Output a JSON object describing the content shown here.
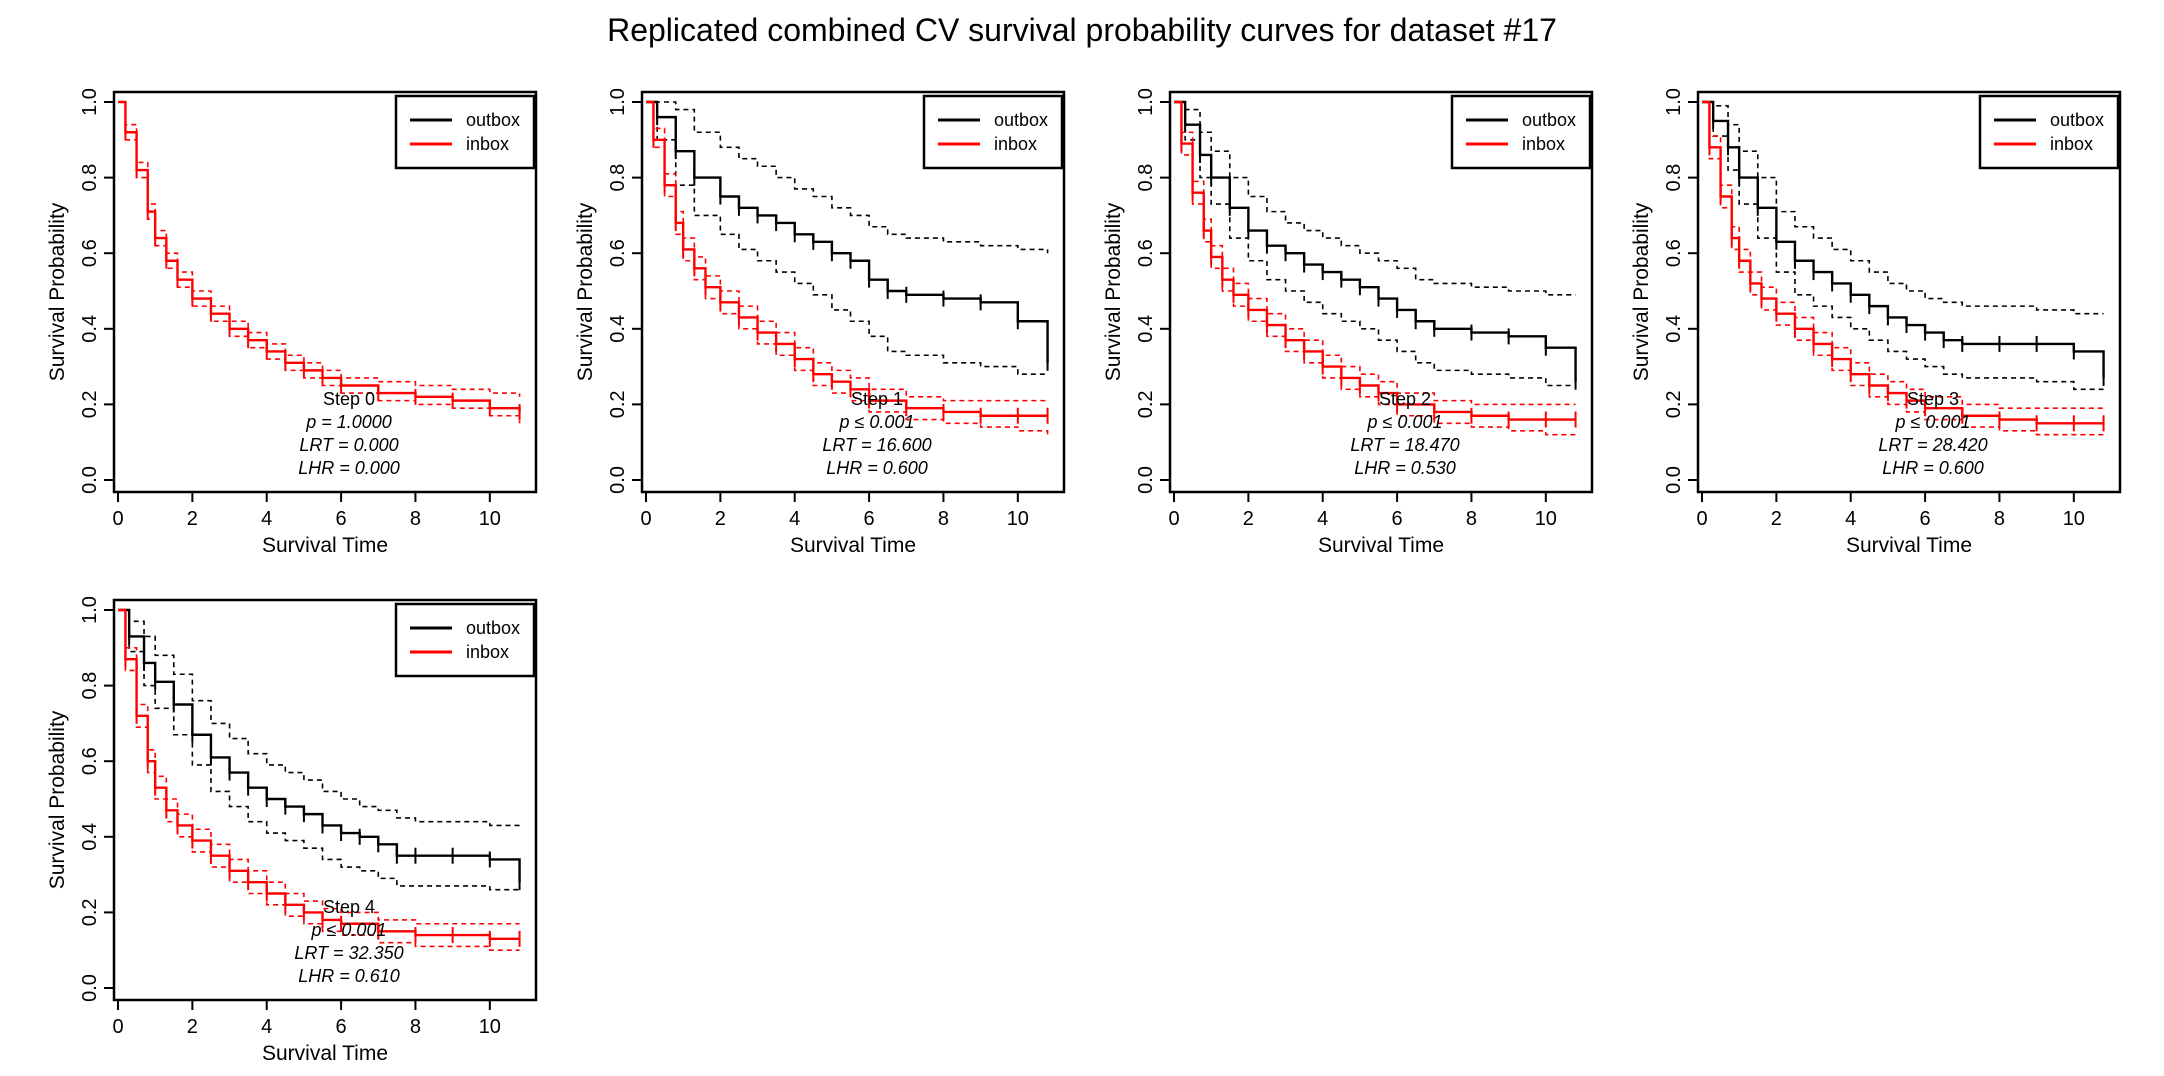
{
  "title": "Replicated combined CV survival probability curves for dataset #17",
  "colors": {
    "outbox": "#000000",
    "inbox": "#ff0000"
  },
  "chart_data": [
    {
      "type": "line",
      "title": "Step 0",
      "xlabel": "Survival Time",
      "ylabel": "Survival Probability",
      "xlim": [
        0,
        11
      ],
      "ylim": [
        0,
        1
      ],
      "xticks": [
        "0",
        "2",
        "4",
        "6",
        "8",
        "10"
      ],
      "yticks": [
        "0.0",
        "0.2",
        "0.4",
        "0.6",
        "0.8",
        "1.0"
      ],
      "legend": {
        "position": "top-right",
        "entries": [
          "outbox",
          "inbox"
        ]
      },
      "stats": [
        "Step 0",
        "p = 1.0000",
        "LRT = 0.000",
        "LHR = 0.000"
      ],
      "series": [
        {
          "name": "inbox",
          "color": "#ff0000",
          "x": [
            0,
            0.2,
            0.5,
            0.8,
            1.0,
            1.3,
            1.6,
            2.0,
            2.5,
            3.0,
            3.5,
            4.0,
            4.5,
            5.0,
            5.5,
            6.0,
            7.0,
            8.0,
            9.0,
            10.0,
            10.8
          ],
          "y": [
            1.0,
            0.92,
            0.82,
            0.71,
            0.64,
            0.58,
            0.53,
            0.48,
            0.44,
            0.4,
            0.37,
            0.34,
            0.31,
            0.29,
            0.27,
            0.25,
            0.23,
            0.22,
            0.21,
            0.19,
            0.18
          ],
          "ci_low": [
            1.0,
            0.9,
            0.8,
            0.69,
            0.62,
            0.56,
            0.51,
            0.46,
            0.42,
            0.38,
            0.35,
            0.32,
            0.29,
            0.27,
            0.25,
            0.23,
            0.21,
            0.2,
            0.19,
            0.17,
            0.15
          ],
          "ci_high": [
            1.0,
            0.94,
            0.84,
            0.73,
            0.66,
            0.6,
            0.55,
            0.5,
            0.46,
            0.42,
            0.39,
            0.36,
            0.33,
            0.31,
            0.29,
            0.27,
            0.26,
            0.25,
            0.24,
            0.23,
            0.22
          ]
        }
      ]
    },
    {
      "type": "line",
      "title": "Step 1",
      "xlabel": "Survival Time",
      "ylabel": "Survival Probability",
      "xlim": [
        0,
        11
      ],
      "ylim": [
        0,
        1
      ],
      "xticks": [
        "0",
        "2",
        "4",
        "6",
        "8",
        "10"
      ],
      "yticks": [
        "0.0",
        "0.2",
        "0.4",
        "0.6",
        "0.8",
        "1.0"
      ],
      "legend": {
        "position": "top-right",
        "entries": [
          "outbox",
          "inbox"
        ]
      },
      "stats": [
        "Step 1",
        "p ≤ 0.001",
        "LRT = 16.600",
        "LHR = 0.600"
      ],
      "series": [
        {
          "name": "outbox",
          "color": "#000000",
          "x": [
            0,
            0.3,
            0.8,
            1.3,
            2.0,
            2.5,
            3.0,
            3.5,
            4.0,
            4.5,
            5.0,
            5.5,
            6.0,
            6.5,
            7.0,
            8.0,
            9.0,
            10.0,
            10.8
          ],
          "y": [
            1.0,
            0.96,
            0.87,
            0.8,
            0.75,
            0.72,
            0.7,
            0.68,
            0.65,
            0.63,
            0.6,
            0.58,
            0.53,
            0.5,
            0.49,
            0.48,
            0.47,
            0.42,
            0.31
          ],
          "ci_low": [
            1.0,
            0.9,
            0.78,
            0.7,
            0.65,
            0.61,
            0.58,
            0.55,
            0.52,
            0.49,
            0.45,
            0.42,
            0.38,
            0.34,
            0.33,
            0.31,
            0.3,
            0.28,
            0.28
          ],
          "ci_high": [
            1.0,
            1.0,
            0.98,
            0.92,
            0.88,
            0.85,
            0.83,
            0.8,
            0.77,
            0.75,
            0.72,
            0.7,
            0.67,
            0.65,
            0.64,
            0.63,
            0.62,
            0.61,
            0.6
          ]
        },
        {
          "name": "inbox",
          "color": "#ff0000",
          "x": [
            0,
            0.2,
            0.5,
            0.8,
            1.0,
            1.3,
            1.6,
            2.0,
            2.5,
            3.0,
            3.5,
            4.0,
            4.5,
            5.0,
            5.5,
            6.0,
            7.0,
            8.0,
            9.0,
            10.0,
            10.8
          ],
          "y": [
            1.0,
            0.9,
            0.78,
            0.68,
            0.61,
            0.56,
            0.51,
            0.47,
            0.43,
            0.39,
            0.36,
            0.32,
            0.28,
            0.26,
            0.24,
            0.21,
            0.19,
            0.18,
            0.17,
            0.17,
            0.17
          ],
          "ci_low": [
            1.0,
            0.88,
            0.75,
            0.65,
            0.58,
            0.53,
            0.48,
            0.44,
            0.4,
            0.36,
            0.33,
            0.29,
            0.25,
            0.23,
            0.21,
            0.18,
            0.16,
            0.15,
            0.14,
            0.13,
            0.12
          ],
          "ci_high": [
            1.0,
            0.93,
            0.81,
            0.71,
            0.64,
            0.59,
            0.54,
            0.5,
            0.46,
            0.42,
            0.39,
            0.35,
            0.31,
            0.29,
            0.27,
            0.24,
            0.22,
            0.21,
            0.21,
            0.21,
            0.21
          ]
        }
      ]
    },
    {
      "type": "line",
      "title": "Step 2",
      "xlabel": "Survival Time",
      "ylabel": "Survival Probability",
      "xlim": [
        0,
        11
      ],
      "ylim": [
        0,
        1
      ],
      "xticks": [
        "0",
        "2",
        "4",
        "6",
        "8",
        "10"
      ],
      "yticks": [
        "0.0",
        "0.2",
        "0.4",
        "0.6",
        "0.8",
        "1.0"
      ],
      "legend": {
        "position": "top-right",
        "entries": [
          "outbox",
          "inbox"
        ]
      },
      "stats": [
        "Step 2",
        "p ≤ 0.001",
        "LRT = 18.470",
        "LHR = 0.530"
      ],
      "series": [
        {
          "name": "outbox",
          "color": "#000000",
          "x": [
            0,
            0.3,
            0.7,
            1.0,
            1.5,
            2.0,
            2.5,
            3.0,
            3.5,
            4.0,
            4.5,
            5.0,
            5.5,
            6.0,
            6.5,
            7.0,
            8.0,
            9.0,
            10.0,
            10.8
          ],
          "y": [
            1.0,
            0.94,
            0.86,
            0.8,
            0.72,
            0.66,
            0.62,
            0.6,
            0.57,
            0.55,
            0.53,
            0.51,
            0.48,
            0.45,
            0.42,
            0.4,
            0.39,
            0.38,
            0.35,
            0.26
          ],
          "ci_low": [
            1.0,
            0.9,
            0.8,
            0.73,
            0.64,
            0.58,
            0.53,
            0.5,
            0.47,
            0.44,
            0.42,
            0.4,
            0.37,
            0.34,
            0.31,
            0.29,
            0.28,
            0.27,
            0.25,
            0.25
          ],
          "ci_high": [
            1.0,
            0.98,
            0.92,
            0.87,
            0.8,
            0.75,
            0.71,
            0.68,
            0.66,
            0.64,
            0.62,
            0.6,
            0.58,
            0.56,
            0.53,
            0.52,
            0.51,
            0.5,
            0.49,
            0.49
          ]
        },
        {
          "name": "inbox",
          "color": "#ff0000",
          "x": [
            0,
            0.2,
            0.5,
            0.8,
            1.0,
            1.3,
            1.6,
            2.0,
            2.5,
            3.0,
            3.5,
            4.0,
            4.5,
            5.0,
            5.5,
            6.0,
            7.0,
            8.0,
            9.0,
            10.0,
            10.8
          ],
          "y": [
            1.0,
            0.89,
            0.76,
            0.66,
            0.59,
            0.53,
            0.49,
            0.45,
            0.41,
            0.37,
            0.34,
            0.3,
            0.27,
            0.25,
            0.23,
            0.2,
            0.18,
            0.17,
            0.16,
            0.16,
            0.16
          ],
          "ci_low": [
            1.0,
            0.86,
            0.73,
            0.63,
            0.56,
            0.5,
            0.46,
            0.42,
            0.38,
            0.34,
            0.31,
            0.27,
            0.24,
            0.22,
            0.2,
            0.17,
            0.15,
            0.14,
            0.13,
            0.12,
            0.11
          ],
          "ci_high": [
            1.0,
            0.92,
            0.79,
            0.69,
            0.62,
            0.56,
            0.52,
            0.48,
            0.44,
            0.4,
            0.37,
            0.33,
            0.3,
            0.28,
            0.26,
            0.23,
            0.21,
            0.2,
            0.2,
            0.2,
            0.2
          ]
        }
      ]
    },
    {
      "type": "line",
      "title": "Step 3",
      "xlabel": "Survival Time",
      "ylabel": "Survival Probability",
      "xlim": [
        0,
        11
      ],
      "ylim": [
        0,
        1
      ],
      "xticks": [
        "0",
        "2",
        "4",
        "6",
        "8",
        "10"
      ],
      "yticks": [
        "0.0",
        "0.2",
        "0.4",
        "0.6",
        "0.8",
        "1.0"
      ],
      "legend": {
        "position": "top-right",
        "entries": [
          "outbox",
          "inbox"
        ]
      },
      "stats": [
        "Step 3",
        "p ≤ 0.001",
        "LRT = 28.420",
        "LHR = 0.600"
      ],
      "series": [
        {
          "name": "outbox",
          "color": "#000000",
          "x": [
            0,
            0.3,
            0.7,
            1.0,
            1.5,
            2.0,
            2.5,
            3.0,
            3.5,
            4.0,
            4.5,
            5.0,
            5.5,
            6.0,
            6.5,
            7.0,
            8.0,
            9.0,
            10.0,
            10.8
          ],
          "y": [
            1.0,
            0.95,
            0.88,
            0.8,
            0.72,
            0.63,
            0.58,
            0.55,
            0.52,
            0.49,
            0.46,
            0.43,
            0.41,
            0.39,
            0.37,
            0.36,
            0.36,
            0.36,
            0.34,
            0.27
          ],
          "ci_low": [
            1.0,
            0.91,
            0.82,
            0.73,
            0.64,
            0.55,
            0.49,
            0.46,
            0.43,
            0.4,
            0.37,
            0.34,
            0.32,
            0.3,
            0.28,
            0.27,
            0.27,
            0.26,
            0.24,
            0.24
          ],
          "ci_high": [
            1.0,
            0.99,
            0.94,
            0.87,
            0.8,
            0.71,
            0.67,
            0.64,
            0.61,
            0.58,
            0.55,
            0.52,
            0.5,
            0.48,
            0.47,
            0.46,
            0.46,
            0.45,
            0.44,
            0.44
          ]
        },
        {
          "name": "inbox",
          "color": "#ff0000",
          "x": [
            0,
            0.2,
            0.5,
            0.8,
            1.0,
            1.3,
            1.6,
            2.0,
            2.5,
            3.0,
            3.5,
            4.0,
            4.5,
            5.0,
            5.5,
            6.0,
            7.0,
            8.0,
            9.0,
            10.0,
            10.8
          ],
          "y": [
            1.0,
            0.88,
            0.75,
            0.64,
            0.58,
            0.52,
            0.48,
            0.44,
            0.4,
            0.36,
            0.32,
            0.28,
            0.25,
            0.23,
            0.21,
            0.19,
            0.17,
            0.16,
            0.15,
            0.15,
            0.15
          ],
          "ci_low": [
            1.0,
            0.85,
            0.72,
            0.61,
            0.55,
            0.49,
            0.45,
            0.41,
            0.37,
            0.33,
            0.29,
            0.25,
            0.22,
            0.2,
            0.18,
            0.16,
            0.14,
            0.13,
            0.12,
            0.12,
            0.12
          ],
          "ci_high": [
            1.0,
            0.91,
            0.78,
            0.67,
            0.61,
            0.55,
            0.51,
            0.47,
            0.43,
            0.39,
            0.35,
            0.31,
            0.28,
            0.26,
            0.24,
            0.22,
            0.2,
            0.19,
            0.19,
            0.19,
            0.19
          ]
        }
      ]
    },
    {
      "type": "line",
      "title": "Step 4",
      "xlabel": "Survival Time",
      "ylabel": "Survival Probability",
      "xlim": [
        0,
        11
      ],
      "ylim": [
        0,
        1
      ],
      "xticks": [
        "0",
        "2",
        "4",
        "6",
        "8",
        "10"
      ],
      "yticks": [
        "0.0",
        "0.2",
        "0.4",
        "0.6",
        "0.8",
        "1.0"
      ],
      "legend": {
        "position": "top-right",
        "entries": [
          "outbox",
          "inbox"
        ]
      },
      "stats": [
        "Step 4",
        "p ≤ 0.001",
        "LRT = 32.350",
        "LHR = 0.610"
      ],
      "series": [
        {
          "name": "outbox",
          "color": "#000000",
          "x": [
            0,
            0.3,
            0.7,
            1.0,
            1.5,
            2.0,
            2.5,
            3.0,
            3.5,
            4.0,
            4.5,
            5.0,
            5.5,
            6.0,
            6.5,
            7.0,
            7.5,
            8.0,
            9.0,
            10.0,
            10.8
          ],
          "y": [
            1.0,
            0.93,
            0.86,
            0.81,
            0.75,
            0.67,
            0.61,
            0.57,
            0.53,
            0.5,
            0.48,
            0.46,
            0.43,
            0.41,
            0.4,
            0.38,
            0.35,
            0.35,
            0.35,
            0.34,
            0.28
          ],
          "ci_low": [
            1.0,
            0.89,
            0.8,
            0.74,
            0.67,
            0.59,
            0.52,
            0.48,
            0.44,
            0.41,
            0.39,
            0.37,
            0.34,
            0.32,
            0.31,
            0.29,
            0.27,
            0.27,
            0.27,
            0.26,
            0.26
          ],
          "ci_high": [
            1.0,
            0.97,
            0.93,
            0.88,
            0.83,
            0.76,
            0.7,
            0.66,
            0.62,
            0.59,
            0.57,
            0.55,
            0.52,
            0.5,
            0.48,
            0.47,
            0.45,
            0.44,
            0.44,
            0.43,
            0.43
          ]
        },
        {
          "name": "inbox",
          "color": "#ff0000",
          "x": [
            0,
            0.2,
            0.5,
            0.8,
            1.0,
            1.3,
            1.6,
            2.0,
            2.5,
            3.0,
            3.5,
            4.0,
            4.5,
            5.0,
            5.5,
            6.0,
            7.0,
            8.0,
            9.0,
            10.0,
            10.8
          ],
          "y": [
            1.0,
            0.87,
            0.72,
            0.6,
            0.53,
            0.47,
            0.43,
            0.39,
            0.35,
            0.31,
            0.28,
            0.25,
            0.22,
            0.2,
            0.18,
            0.17,
            0.15,
            0.14,
            0.14,
            0.13,
            0.13
          ],
          "ci_low": [
            1.0,
            0.84,
            0.69,
            0.57,
            0.5,
            0.44,
            0.4,
            0.36,
            0.32,
            0.28,
            0.25,
            0.22,
            0.19,
            0.17,
            0.15,
            0.14,
            0.12,
            0.11,
            0.11,
            0.1,
            0.1
          ],
          "ci_high": [
            1.0,
            0.9,
            0.75,
            0.63,
            0.56,
            0.5,
            0.46,
            0.42,
            0.38,
            0.34,
            0.31,
            0.28,
            0.25,
            0.23,
            0.21,
            0.2,
            0.18,
            0.17,
            0.17,
            0.17,
            0.17
          ]
        }
      ]
    }
  ]
}
